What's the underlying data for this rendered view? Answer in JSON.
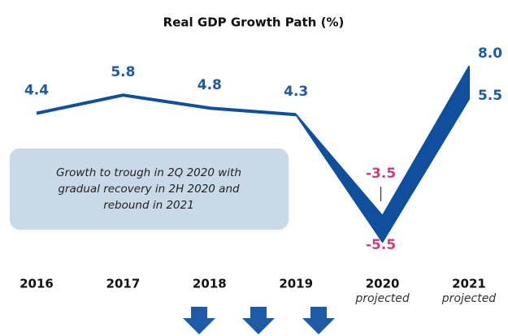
{
  "chart_data": {
    "type": "range_line",
    "title": "Real GDP Growth Path (%)",
    "categories": [
      "2016",
      "2017",
      "2018",
      "2019",
      "2020",
      "2021"
    ],
    "category_notes": [
      null,
      null,
      null,
      null,
      "projected",
      "projected"
    ],
    "series": [
      {
        "color": "#0f4f9e",
        "values": [
          4.4,
          5.8,
          4.8,
          4.3,
          -3.5,
          8.0
        ],
        "value_labels": [
          "4.4",
          "5.8",
          "4.8",
          "4.3",
          "-3.5",
          "8.0"
        ],
        "label_colors": [
          "#1f5aa6",
          "#1f5aa6",
          "#1f5aa6",
          "#1f5aa6",
          "#c8417b",
          "#1f5aa6"
        ]
      },
      {
        "color": "#0f4f9e",
        "values": [
          null,
          null,
          null,
          null,
          -5.5,
          5.5
        ],
        "value_labels": [
          null,
          null,
          null,
          null,
          "-5.5",
          "5.5"
        ],
        "label_colors": [
          null,
          null,
          null,
          null,
          "#c8417b",
          "#1f5aa6"
        ]
      }
    ],
    "ylim": [
      -7,
      9
    ],
    "annotation": [
      "Growth to trough in 2Q 2020 with",
      "gradual recovery in 2H 2020 and",
      "rebound in 2021"
    ]
  }
}
